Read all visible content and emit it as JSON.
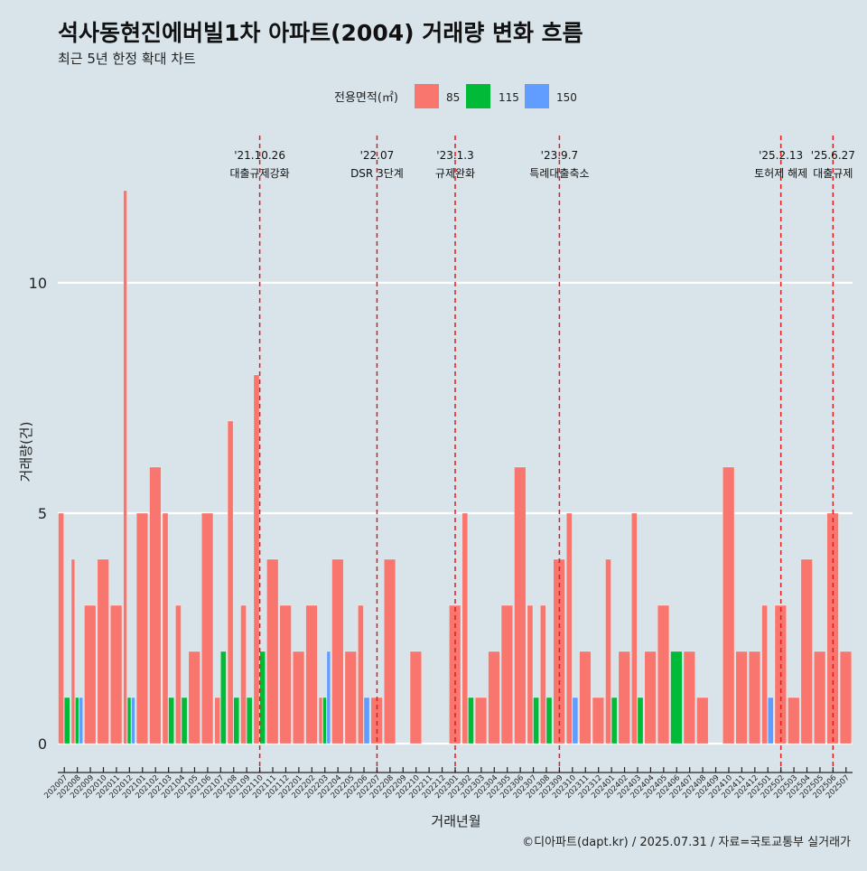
{
  "title": "석사동현진에버빌1차 아파트(2004) 거래량 변화 흐름",
  "subtitle": "최근 5년 한정 확대 차트",
  "caption": "©디아파트(dapt.kr) / 2025.07.31 / 자료=국토교통부 실거래가",
  "colors": {
    "85": "#f8766d",
    "115": "#00ba38",
    "150": "#619cff",
    "background": "#d8e4ea",
    "vline": "#e31a1c"
  },
  "chart_data": {
    "type": "bar",
    "xlabel": "거래년월",
    "ylabel": "거래량(건)",
    "ylim": [
      0,
      12
    ],
    "yticks": [
      0,
      5,
      10
    ],
    "legend_title": "전용면적(㎡)",
    "legend_position": "top",
    "stacked": false,
    "dodged": true,
    "grid": "horizontal major",
    "categories": [
      "202007",
      "202008",
      "202009",
      "202010",
      "202011",
      "202012",
      "202101",
      "202102",
      "202103",
      "202104",
      "202105",
      "202106",
      "202107",
      "202108",
      "202109",
      "202110",
      "202111",
      "202112",
      "202201",
      "202202",
      "202203",
      "202204",
      "202205",
      "202206",
      "202207",
      "202208",
      "202209",
      "202210",
      "202211",
      "202212",
      "202301",
      "202302",
      "202303",
      "202304",
      "202305",
      "202306",
      "202307",
      "202308",
      "202309",
      "202310",
      "202311",
      "202312",
      "202401",
      "202402",
      "202403",
      "202404",
      "202405",
      "202406",
      "202407",
      "202408",
      "202409",
      "202410",
      "202411",
      "202412",
      "202501",
      "202502",
      "202503",
      "202504",
      "202505",
      "202506",
      "202507"
    ],
    "series": [
      {
        "name": "85",
        "values": [
          5,
          4,
          3,
          4,
          3,
          12,
          5,
          6,
          5,
          3,
          2,
          5,
          1,
          7,
          3,
          8,
          4,
          3,
          2,
          3,
          1,
          4,
          2,
          3,
          1,
          4,
          0,
          2,
          0,
          0,
          3,
          5,
          1,
          2,
          3,
          6,
          3,
          3,
          4,
          5,
          2,
          1,
          4,
          2,
          5,
          2,
          3,
          0,
          2,
          1,
          0,
          6,
          2,
          2,
          3,
          3,
          1,
          4,
          2,
          5,
          2
        ]
      },
      {
        "name": "115",
        "values": [
          1,
          1,
          0,
          0,
          0,
          1,
          0,
          0,
          1,
          1,
          0,
          0,
          2,
          1,
          1,
          2,
          0,
          0,
          0,
          0,
          1,
          0,
          0,
          0,
          0,
          0,
          0,
          0,
          0,
          0,
          0,
          1,
          0,
          0,
          0,
          0,
          1,
          1,
          0,
          0,
          0,
          0,
          1,
          0,
          1,
          0,
          0,
          2,
          0,
          0,
          0,
          0,
          0,
          0,
          0,
          0,
          0,
          0,
          0,
          0,
          0
        ]
      },
      {
        "name": "150",
        "values": [
          0,
          1,
          0,
          0,
          0,
          1,
          0,
          0,
          0,
          0,
          0,
          0,
          0,
          0,
          0,
          0,
          0,
          0,
          0,
          0,
          2,
          0,
          0,
          1,
          0,
          0,
          0,
          0,
          0,
          0,
          0,
          0,
          0,
          0,
          0,
          0,
          0,
          0,
          0,
          1,
          0,
          0,
          0,
          0,
          0,
          0,
          0,
          0,
          0,
          0,
          0,
          0,
          0,
          0,
          1,
          0,
          0,
          0,
          0,
          0,
          0
        ]
      }
    ],
    "annotations": [
      {
        "x": "202110",
        "date": "'21.10.26",
        "label": "대출규제강화"
      },
      {
        "x": "202207",
        "date": "'22.07",
        "label": "DSR 3단계"
      },
      {
        "x": "202301",
        "date": "'23.1.3",
        "label": "규제완화"
      },
      {
        "x": "202309",
        "date": "'23.9.7",
        "label": "특례대출축소"
      },
      {
        "x": "202502",
        "date": "'25.2.13",
        "label": "토허제 해제"
      },
      {
        "x": "202506",
        "date": "'25.6.27",
        "label": "대출규제"
      }
    ]
  }
}
